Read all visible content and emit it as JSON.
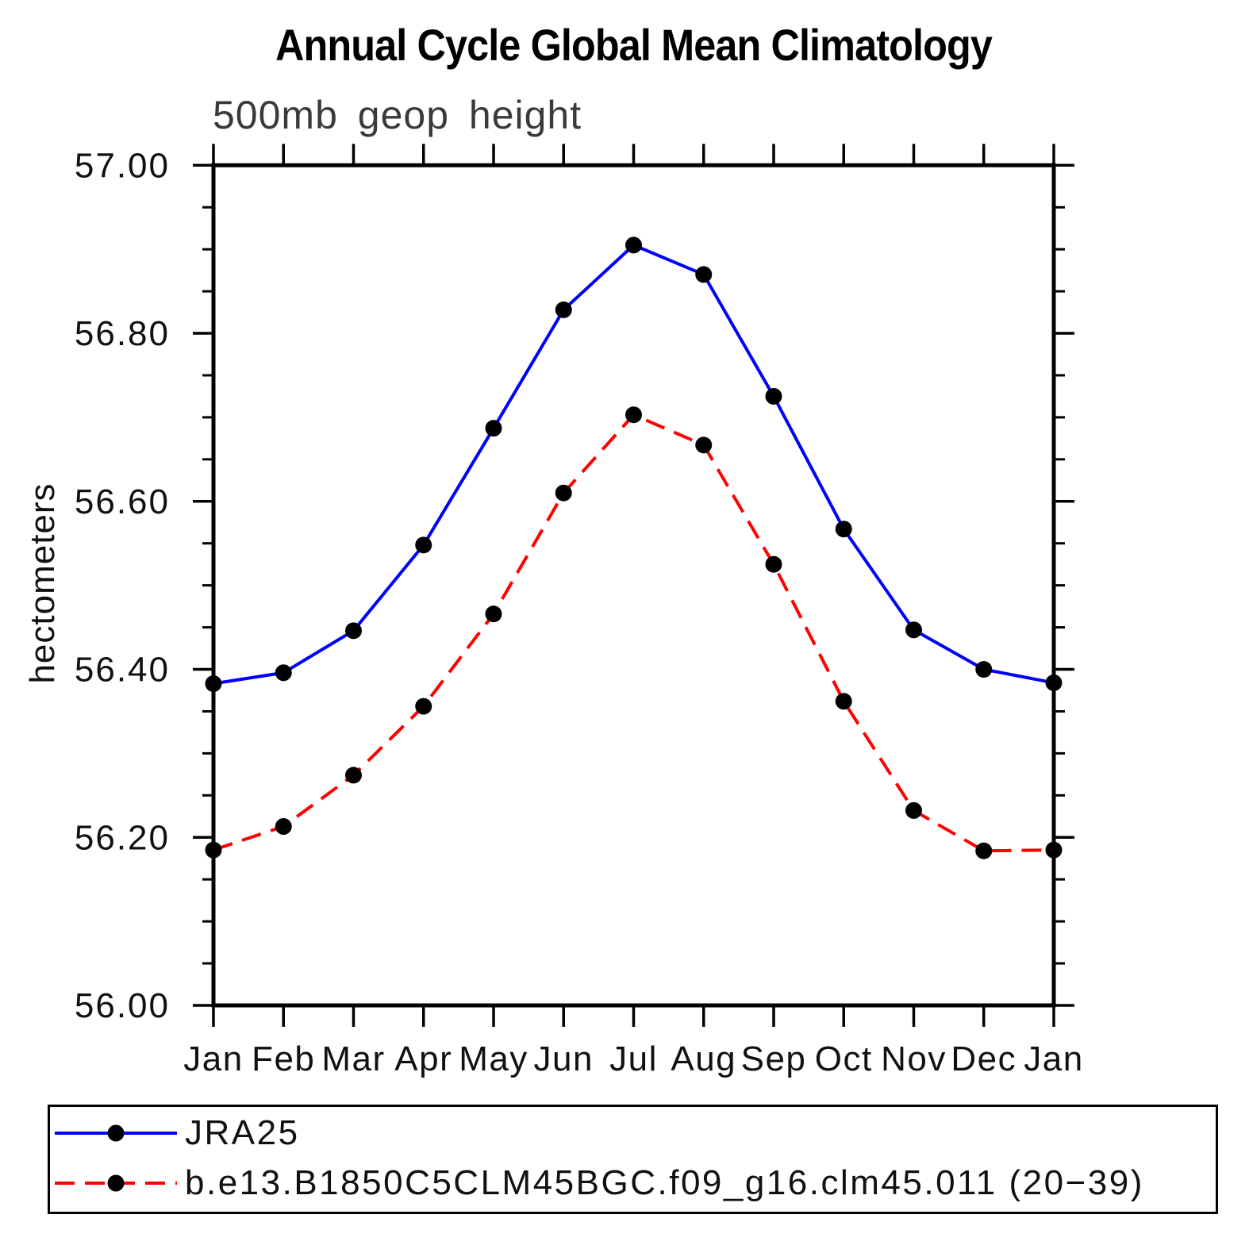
{
  "chart_data": {
    "type": "line",
    "title": "Annual Cycle Global Mean Climatology",
    "subtitle": "500mb geop height",
    "xlabel": "",
    "ylabel": "hectometers",
    "ylim": [
      56.0,
      57.0
    ],
    "y_major_tick": 0.2,
    "y_minor_tick": 0.05,
    "y_tick_labels": [
      "57.00",
      "56.80",
      "56.60",
      "56.40",
      "56.20",
      "56.00"
    ],
    "grid": false,
    "legend_position": "bottom-box",
    "categories": [
      "Jan",
      "Feb",
      "Mar",
      "Apr",
      "May",
      "Jun",
      "Jul",
      "Aug",
      "Sep",
      "Oct",
      "Nov",
      "Dec",
      "Jan"
    ],
    "series": [
      {
        "name": "JRA25",
        "color": "#0000ff",
        "style": "solid",
        "marker": "filled-circle",
        "marker_color": "#000000",
        "values": [
          56.383,
          56.396,
          56.446,
          56.548,
          56.687,
          56.828,
          56.905,
          56.87,
          56.725,
          56.567,
          56.447,
          56.4,
          56.384
        ]
      },
      {
        "name": "b.e13.B1850C5CLM45BGC.f09_g16.clm45.011 (20−39)",
        "color": "#ff0000",
        "style": "dashed",
        "marker": "filled-circle",
        "marker_color": "#000000",
        "values": [
          56.185,
          56.213,
          56.274,
          56.356,
          56.466,
          56.61,
          56.703,
          56.667,
          56.525,
          56.362,
          56.232,
          56.184,
          56.185
        ]
      }
    ]
  },
  "colors": {
    "frame": "#000000",
    "text": "#111111",
    "subtitle_text": "#3a3a3a",
    "marker": "#000000",
    "series_jra25": "#0000ff",
    "series_model": "#ff0000"
  }
}
